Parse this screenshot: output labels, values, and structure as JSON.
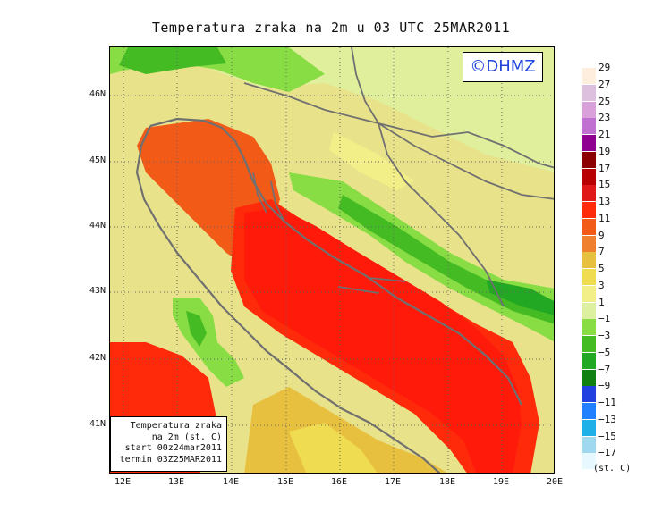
{
  "title": "Temperatura zraka na 2m u 03 UTC 25MAR2011",
  "logo": "©DHMZ",
  "info_box": {
    "line1": "Temperatura zraka",
    "line2": "na 2m (st. C)",
    "line3": "start 00z24mar2011",
    "line4": "termin 03Z25MAR2011"
  },
  "lat_labels": [
    "46N",
    "45N",
    "44N",
    "43N",
    "42N",
    "41N"
  ],
  "lon_labels": [
    "12E",
    "13E",
    "14E",
    "15E",
    "16E",
    "17E",
    "18E",
    "19E",
    "20E"
  ],
  "legend": {
    "unit": "(st. C)",
    "labels": [
      "29",
      "27",
      "25",
      "23",
      "21",
      "19",
      "17",
      "15",
      "13",
      "11",
      "9",
      "7",
      "5",
      "3",
      "1",
      "−1",
      "−3",
      "−5",
      "−7",
      "−9",
      "−11",
      "−13",
      "−15",
      "−17"
    ],
    "colors": [
      "#fdeedd",
      "#ddc0dd",
      "#d9a0d9",
      "#c070d0",
      "#900090",
      "#8b0000",
      "#b80000",
      "#e01818",
      "#ff2a0a",
      "#f25a18",
      "#ee8030",
      "#e8c040",
      "#f0dc50",
      "#f2ee88",
      "#ddf0a0",
      "#88dd44",
      "#44bb22",
      "#22a822",
      "#108010",
      "#2040e0",
      "#2080ff",
      "#20b0e8",
      "#a0d8f0",
      "#e8f8ff"
    ]
  }
}
